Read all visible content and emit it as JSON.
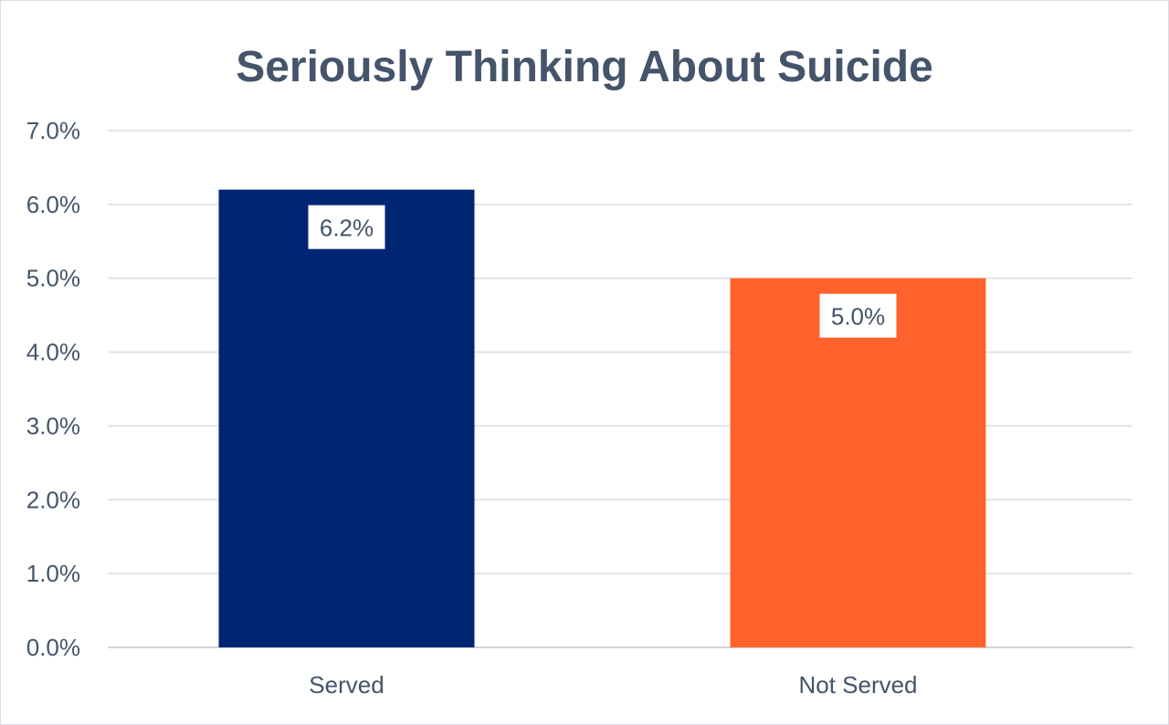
{
  "chart_data": {
    "type": "bar",
    "title": "Seriously Thinking About Suicide",
    "categories": [
      "Served",
      "Not Served"
    ],
    "values": [
      6.2,
      5.0
    ],
    "data_labels": [
      "6.2%",
      "5.0%"
    ],
    "colors": [
      "#002673",
      "#ff632b"
    ],
    "xlabel": "",
    "ylabel": "",
    "ylim": [
      0,
      7
    ],
    "yticks": [
      "0.0%",
      "1.0%",
      "2.0%",
      "3.0%",
      "4.0%",
      "5.0%",
      "6.0%",
      "7.0%"
    ],
    "grid": true,
    "legend": "none"
  }
}
